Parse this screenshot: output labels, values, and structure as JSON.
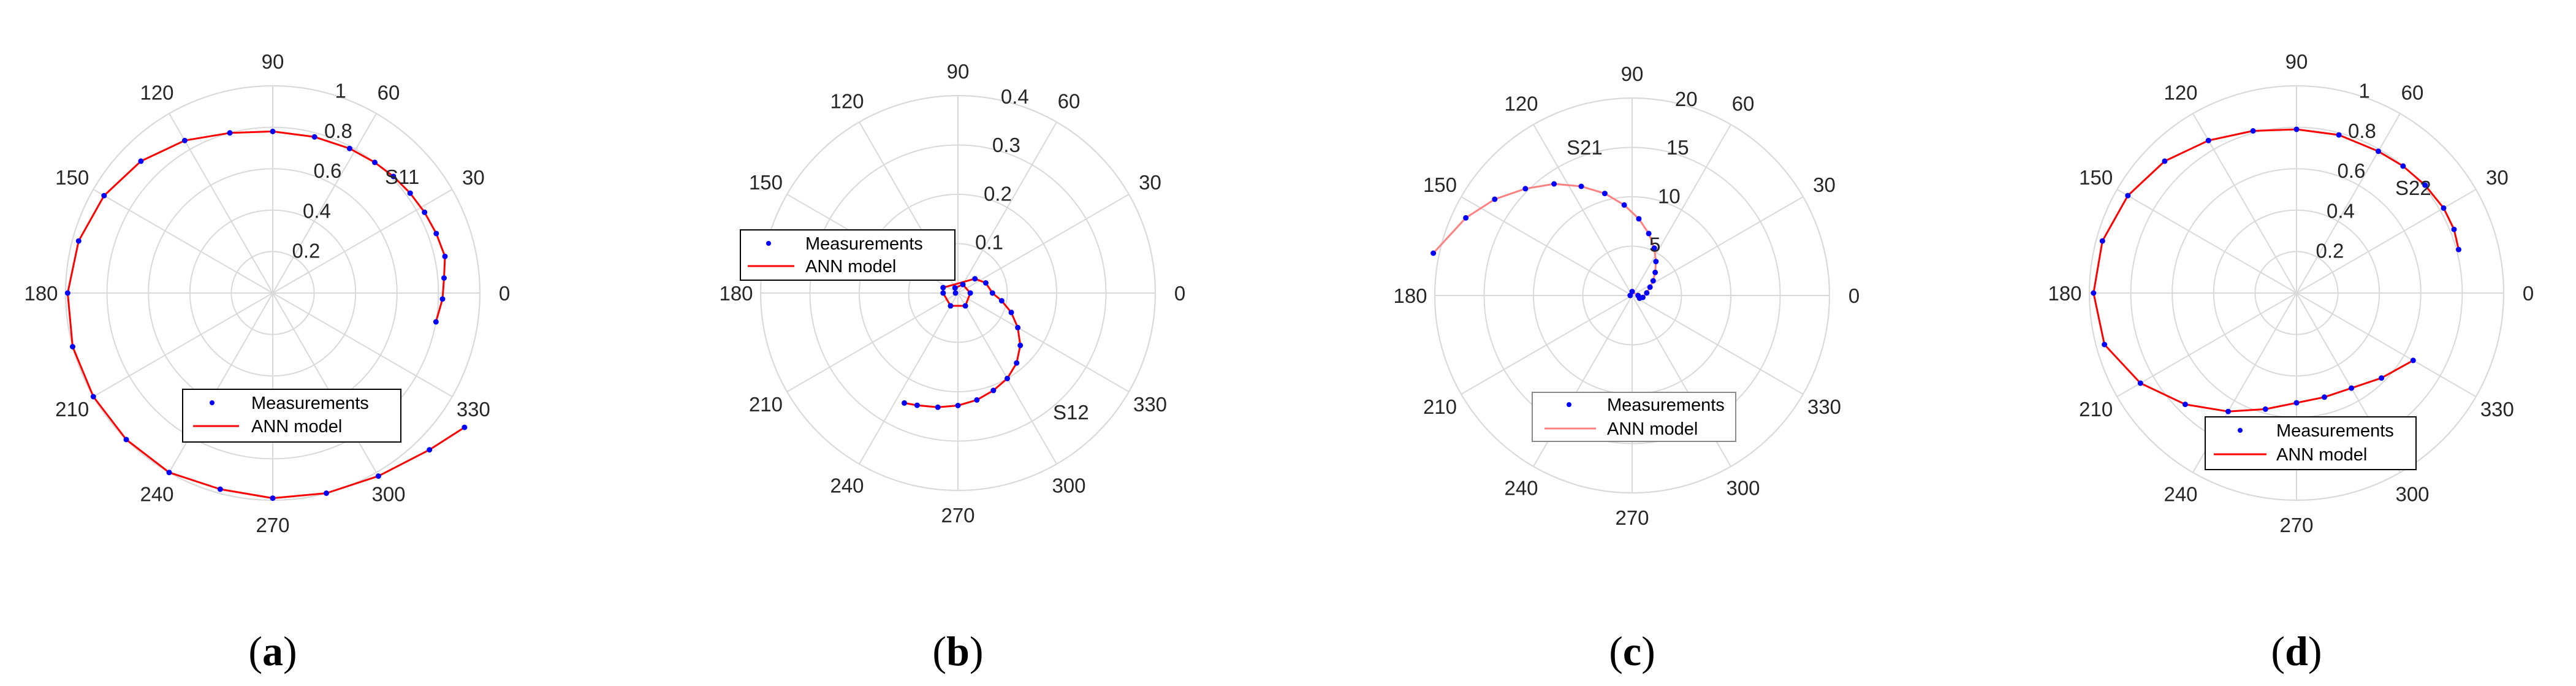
{
  "colors": {
    "grid": "#d9d9d9",
    "axis_text": "#262626",
    "measurement": "#0000ff",
    "model": "#ff0000",
    "legend_border": "#000000"
  },
  "chart_data": [
    {
      "type": "polar-scatter-line",
      "panel_label": "a",
      "series_label": "S11",
      "rlim": [
        0,
        1
      ],
      "r_ticks": [
        0.2,
        0.4,
        0.6,
        0.8,
        1
      ],
      "r_tick_labels": [
        "0.2",
        "0.4",
        "0.6",
        "0.8",
        "1"
      ],
      "theta_ticks": [
        0,
        30,
        60,
        90,
        120,
        150,
        180,
        210,
        240,
        270,
        300,
        330
      ],
      "theta_tick_labels": [
        "0",
        "30",
        "60",
        "90",
        "120",
        "150",
        "180",
        "210",
        "240",
        "270",
        "300",
        "330"
      ],
      "legend": {
        "entries": [
          "Measurements",
          "ANN model"
        ],
        "placement": "lower-center"
      },
      "series": [
        {
          "name": "Measurements",
          "style": "dots",
          "points": [
            [
              -10,
              0.8
            ],
            [
              -2,
              0.82
            ],
            [
              5,
              0.83
            ],
            [
              12,
              0.85
            ],
            [
              20,
              0.84
            ],
            [
              28,
              0.83
            ],
            [
              36,
              0.82
            ],
            [
              44,
              0.81
            ],
            [
              52,
              0.8
            ],
            [
              62,
              0.79
            ],
            [
              75,
              0.78
            ],
            [
              90,
              0.78
            ],
            [
              105,
              0.8
            ],
            [
              120,
              0.85
            ],
            [
              135,
              0.9
            ],
            [
              150,
              0.94
            ],
            [
              165,
              0.97
            ],
            [
              180,
              0.99
            ],
            [
              195,
              1.0
            ],
            [
              210,
              1.0
            ],
            [
              225,
              1.0
            ],
            [
              240,
              1.0
            ],
            [
              255,
              0.98
            ],
            [
              270,
              0.99
            ],
            [
              285,
              1.0
            ],
            [
              300,
              1.02
            ],
            [
              315,
              1.07
            ],
            [
              325,
              1.13
            ]
          ]
        },
        {
          "name": "ANN model",
          "style": "line",
          "points": [
            [
              -10,
              0.8
            ],
            [
              -2,
              0.82
            ],
            [
              5,
              0.83
            ],
            [
              12,
              0.85
            ],
            [
              20,
              0.84
            ],
            [
              28,
              0.83
            ],
            [
              36,
              0.82
            ],
            [
              44,
              0.81
            ],
            [
              52,
              0.8
            ],
            [
              62,
              0.79
            ],
            [
              75,
              0.78
            ],
            [
              90,
              0.78
            ],
            [
              105,
              0.8
            ],
            [
              120,
              0.85
            ],
            [
              135,
              0.9
            ],
            [
              150,
              0.94
            ],
            [
              165,
              0.97
            ],
            [
              180,
              0.99
            ],
            [
              195,
              1.0
            ],
            [
              210,
              1.0
            ],
            [
              225,
              1.0
            ],
            [
              240,
              1.0
            ],
            [
              255,
              0.98
            ],
            [
              270,
              0.99
            ],
            [
              285,
              1.0
            ],
            [
              300,
              1.02
            ],
            [
              315,
              1.07
            ],
            [
              325,
              1.13
            ]
          ]
        }
      ]
    },
    {
      "type": "polar-scatter-line",
      "panel_label": "b",
      "series_label": "S12",
      "rlim": [
        0,
        0.4
      ],
      "r_ticks": [
        0.1,
        0.2,
        0.3,
        0.4
      ],
      "r_tick_labels": [
        "0.1",
        "0.2",
        "0.3",
        "0.4"
      ],
      "theta_ticks": [
        0,
        30,
        60,
        90,
        120,
        150,
        180,
        210,
        240,
        270,
        300,
        330
      ],
      "theta_tick_labels": [
        "0",
        "30",
        "60",
        "90",
        "120",
        "150",
        "180",
        "210",
        "240",
        "270",
        "300",
        "330"
      ],
      "legend": {
        "entries": [
          "Measurements",
          "ANN model"
        ],
        "placement": "upper-left"
      },
      "series": [
        {
          "name": "Measurements",
          "style": "dots",
          "points": [
            [
              180,
              0.005
            ],
            [
              120,
              0.012
            ],
            [
              60,
              0.02
            ],
            [
              0,
              0.025
            ],
            [
              -60,
              0.03
            ],
            [
              -120,
              0.03
            ],
            [
              -180,
              0.03
            ],
            [
              -200,
              0.032
            ],
            [
              40,
              0.045
            ],
            [
              20,
              0.06
            ],
            [
              0,
              0.07
            ],
            [
              -10,
              0.09
            ],
            [
              -20,
              0.115
            ],
            [
              -30,
              0.14
            ],
            [
              -40,
              0.165
            ],
            [
              -50,
              0.185
            ],
            [
              -60,
              0.2
            ],
            [
              -70,
              0.21
            ],
            [
              -80,
              0.22
            ],
            [
              -90,
              0.228
            ],
            [
              -100,
              0.235
            ],
            [
              -110,
              0.242
            ],
            [
              -116,
              0.248
            ]
          ]
        },
        {
          "name": "ANN model",
          "style": "line",
          "points": [
            [
              180,
              0.005
            ],
            [
              120,
              0.012
            ],
            [
              60,
              0.02
            ],
            [
              0,
              0.025
            ],
            [
              -60,
              0.03
            ],
            [
              -120,
              0.03
            ],
            [
              -180,
              0.03
            ],
            [
              -200,
              0.032
            ],
            [
              40,
              0.045
            ],
            [
              20,
              0.06
            ],
            [
              0,
              0.07
            ],
            [
              -10,
              0.09
            ],
            [
              -20,
              0.115
            ],
            [
              -30,
              0.14
            ],
            [
              -40,
              0.165
            ],
            [
              -50,
              0.185
            ],
            [
              -60,
              0.2
            ],
            [
              -70,
              0.21
            ],
            [
              -80,
              0.22
            ],
            [
              -90,
              0.228
            ],
            [
              -100,
              0.235
            ],
            [
              -110,
              0.242
            ],
            [
              -116,
              0.248
            ]
          ]
        }
      ]
    },
    {
      "type": "polar-scatter-line",
      "panel_label": "c",
      "series_label": "S21",
      "rlim": [
        0,
        20
      ],
      "r_ticks": [
        5,
        10,
        15,
        20
      ],
      "r_tick_labels": [
        "5",
        "10",
        "15",
        "20"
      ],
      "theta_ticks": [
        0,
        30,
        60,
        90,
        120,
        150,
        180,
        210,
        240,
        270,
        300,
        330
      ],
      "theta_tick_labels": [
        "0",
        "30",
        "60",
        "90",
        "120",
        "150",
        "180",
        "210",
        "240",
        "270",
        "300",
        "330"
      ],
      "legend": {
        "entries": [
          "Measurements",
          "ANN model"
        ],
        "placement": "lower-center"
      },
      "series": [
        {
          "name": "Measurements",
          "style": "dots",
          "points": [
            [
              180,
              0.2
            ],
            [
              90,
              0.4
            ],
            [
              0,
              0.6
            ],
            [
              -20,
              0.8
            ],
            [
              -10,
              1.1
            ],
            [
              10,
              1.5
            ],
            [
              25,
              2.0
            ],
            [
              35,
              2.6
            ],
            [
              45,
              3.3
            ],
            [
              55,
              4.2
            ],
            [
              65,
              5.3
            ],
            [
              75,
              6.5
            ],
            [
              85,
              7.8
            ],
            [
              95,
              9.2
            ],
            [
              105,
              10.7
            ],
            [
              115,
              12.2
            ],
            [
              125,
              13.8
            ],
            [
              135,
              15.3
            ],
            [
              145,
              17.0
            ],
            [
              155,
              18.6
            ],
            [
              168,
              20.6
            ]
          ]
        },
        {
          "name": "ANN model",
          "style": "line",
          "points": [
            [
              180,
              0.2
            ],
            [
              90,
              0.4
            ],
            [
              0,
              0.6
            ],
            [
              -20,
              0.8
            ],
            [
              -10,
              1.1
            ],
            [
              10,
              1.5
            ],
            [
              25,
              2.0
            ],
            [
              35,
              2.6
            ],
            [
              45,
              3.3
            ],
            [
              55,
              4.2
            ],
            [
              65,
              5.3
            ],
            [
              75,
              6.5
            ],
            [
              85,
              7.8
            ],
            [
              95,
              9.2
            ],
            [
              105,
              10.7
            ],
            [
              115,
              12.2
            ],
            [
              125,
              13.8
            ],
            [
              135,
              15.3
            ],
            [
              145,
              17.0
            ],
            [
              155,
              18.6
            ],
            [
              168,
              20.6
            ]
          ]
        }
      ]
    },
    {
      "type": "polar-scatter-line",
      "panel_label": "d",
      "series_label": "S22",
      "rlim": [
        0,
        1
      ],
      "r_ticks": [
        0.2,
        0.4,
        0.6,
        0.8,
        1
      ],
      "r_tick_labels": [
        "0.2",
        "0.4",
        "0.6",
        "0.8",
        "1"
      ],
      "theta_ticks": [
        0,
        30,
        60,
        90,
        120,
        150,
        180,
        210,
        240,
        270,
        300,
        330
      ],
      "theta_tick_labels": [
        "0",
        "30",
        "60",
        "90",
        "120",
        "150",
        "180",
        "210",
        "240",
        "270",
        "300",
        "330"
      ],
      "legend": {
        "entries": [
          "Measurements",
          "ANN model"
        ],
        "placement": "lower-center"
      },
      "series": [
        {
          "name": "Measurements",
          "style": "dots",
          "points": [
            [
              15,
              0.81
            ],
            [
              22,
              0.82
            ],
            [
              30,
              0.82
            ],
            [
              40,
              0.81
            ],
            [
              50,
              0.8
            ],
            [
              60,
              0.79
            ],
            [
              75,
              0.79
            ],
            [
              90,
              0.79
            ],
            [
              105,
              0.81
            ],
            [
              120,
              0.85
            ],
            [
              135,
              0.9
            ],
            [
              150,
              0.94
            ],
            [
              165,
              0.97
            ],
            [
              180,
              0.98
            ],
            [
              195,
              0.96
            ],
            [
              210,
              0.87
            ],
            [
              225,
              0.76
            ],
            [
              240,
              0.66
            ],
            [
              255,
              0.58
            ],
            [
              270,
              0.53
            ],
            [
              285,
              0.52
            ],
            [
              300,
              0.53
            ],
            [
              315,
              0.58
            ],
            [
              330,
              0.65
            ]
          ]
        },
        {
          "name": "ANN model",
          "style": "line",
          "points": [
            [
              15,
              0.81
            ],
            [
              22,
              0.82
            ],
            [
              30,
              0.82
            ],
            [
              40,
              0.81
            ],
            [
              50,
              0.8
            ],
            [
              60,
              0.79
            ],
            [
              75,
              0.79
            ],
            [
              90,
              0.79
            ],
            [
              105,
              0.81
            ],
            [
              120,
              0.85
            ],
            [
              135,
              0.9
            ],
            [
              150,
              0.94
            ],
            [
              165,
              0.97
            ],
            [
              180,
              0.98
            ],
            [
              195,
              0.96
            ],
            [
              210,
              0.87
            ],
            [
              225,
              0.76
            ],
            [
              240,
              0.66
            ],
            [
              255,
              0.58
            ],
            [
              270,
              0.53
            ],
            [
              285,
              0.52
            ],
            [
              300,
              0.53
            ],
            [
              315,
              0.58
            ],
            [
              330,
              0.65
            ]
          ]
        }
      ]
    }
  ]
}
